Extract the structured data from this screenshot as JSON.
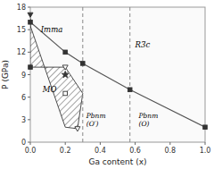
{
  "chart_data": {
    "type": "scatter",
    "xlabel": "Ga content (x)",
    "ylabel": "P (GPa)",
    "xlim": [
      0.0,
      1.0
    ],
    "ylim": [
      0,
      18
    ],
    "xticks": [
      {
        "value": 0.0,
        "label": "0.0"
      },
      0.2,
      0.4,
      0.6,
      0.8,
      {
        "value": 1.0,
        "label": "1.0"
      }
    ],
    "yticks": [
      0,
      3,
      6,
      9,
      12,
      15,
      18
    ],
    "grid": false,
    "hatch_region": {
      "x": [
        0.0,
        0.0,
        0.2,
        0.3,
        0.27,
        0.2,
        0.0
      ],
      "y": [
        16.5,
        10.0,
        10.0,
        6.5,
        1.8,
        2.0,
        15.5
      ]
    },
    "vlines": [
      0.3,
      0.57
    ],
    "series": [
      {
        "type": "line",
        "color": "#555555",
        "x": [
          0.0,
          0.2,
          0.3,
          0.57,
          1.0
        ],
        "values": [
          16.0,
          12.0,
          10.5,
          7.0,
          2.0
        ]
      },
      {
        "type": "scatter",
        "marker": "square",
        "color": "#333333",
        "x": [
          0.0,
          0.0,
          0.2,
          0.3,
          0.57,
          1.0
        ],
        "values": [
          16.0,
          10.0,
          12.0,
          10.5,
          7.0,
          2.0
        ]
      },
      {
        "type": "scatter",
        "marker": "triangle-down",
        "color": "#333333",
        "x": [
          0.0
        ],
        "values": [
          17.0
        ]
      },
      {
        "type": "scatter",
        "marker": "open-triangle-down",
        "color": "#333333",
        "x": [
          0.2,
          0.27
        ],
        "values": [
          10.0,
          1.8
        ]
      },
      {
        "type": "scatter",
        "marker": "star",
        "color": "#333333",
        "x": [
          0.2
        ],
        "values": [
          9.0
        ]
      },
      {
        "type": "scatter",
        "marker": "open-square",
        "color": "#333333",
        "x": [
          0.2
        ],
        "values": [
          6.5
        ]
      }
    ],
    "annotations": [
      {
        "text": "Imma",
        "x": 0.06,
        "y": 15.5
      },
      {
        "text": "R3̅c",
        "x": 0.6,
        "y": 13.5
      },
      {
        "text": "MO",
        "x": 0.07,
        "y": 7.0
      },
      {
        "text": "Pbnm\n(O′)",
        "x": 0.32,
        "y": 4.0
      },
      {
        "text": "Pbnm\n(O)",
        "x": 0.62,
        "y": 4.0
      }
    ]
  }
}
